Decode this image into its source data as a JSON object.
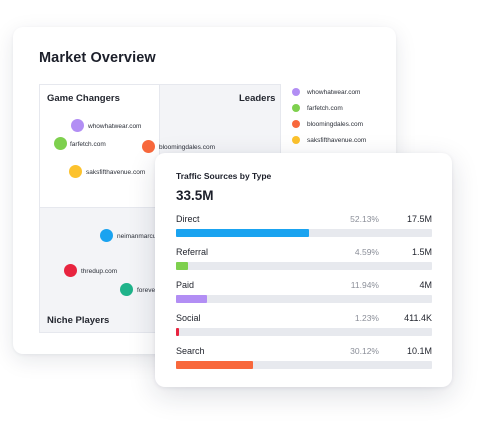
{
  "market_overview": {
    "title": "Market Overview",
    "quadrants": {
      "top_left": "Game Changers",
      "top_right": "Leaders",
      "bottom_left": "Niche Players"
    },
    "bubbles": [
      {
        "label": "whowhatwear.com",
        "color": "#b28ef4"
      },
      {
        "label": "farfetch.com",
        "color": "#7ed04e"
      },
      {
        "label": "bloomingdales.com",
        "color": "#f8683c"
      },
      {
        "label": "saksfifthavenue.com",
        "color": "#fcc22d"
      },
      {
        "label": "neimanmarcu",
        "color": "#1aa3f0"
      },
      {
        "label": "thredup.com",
        "color": "#e8243f"
      },
      {
        "label": "foreve",
        "color": "#1fb38a"
      }
    ],
    "legend": [
      {
        "label": "whowhatwear.com",
        "color": "#b28ef4"
      },
      {
        "label": "farfetch.com",
        "color": "#7ed04e"
      },
      {
        "label": "bloomingdales.com",
        "color": "#f8683c"
      },
      {
        "label": "saksfifthavenue.com",
        "color": "#fcc22d"
      }
    ]
  },
  "traffic_sources": {
    "title": "Traffic Sources by Type",
    "total": "33.5M",
    "sources": [
      {
        "name": "Direct",
        "percent": "52.13%",
        "value": "17.5M",
        "share": 0.5213,
        "color": "#1aa3f0"
      },
      {
        "name": "Referral",
        "percent": "4.59%",
        "value": "1.5M",
        "share": 0.0459,
        "color": "#7ed04e"
      },
      {
        "name": "Paid",
        "percent": "11.94%",
        "value": "4M",
        "share": 0.1194,
        "color": "#b28ef4"
      },
      {
        "name": "Social",
        "percent": "1.23%",
        "value": "411.4K",
        "share": 0.0123,
        "color": "#e8243f"
      },
      {
        "name": "Search",
        "percent": "30.12%",
        "value": "10.1M",
        "share": 0.3012,
        "color": "#f8683c"
      }
    ]
  }
}
